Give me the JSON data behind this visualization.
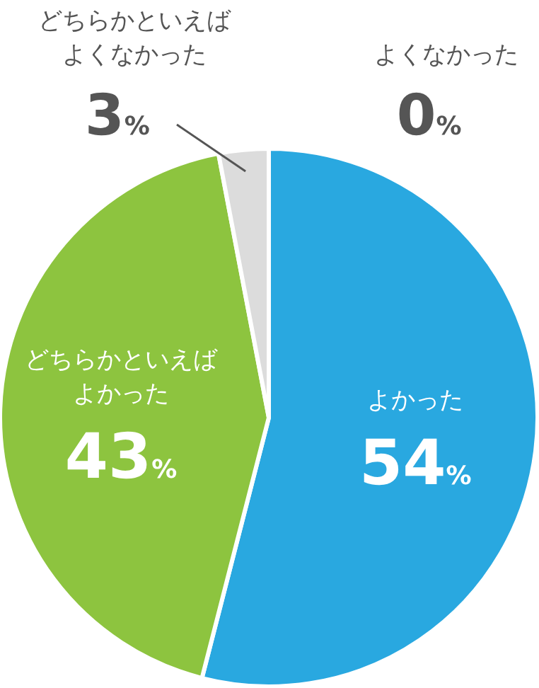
{
  "chart_data": {
    "type": "pie",
    "categories": [
      "よかった",
      "どちらかといえばよかった",
      "どちらかといえばよくなかった",
      "よくなかった"
    ],
    "values": [
      54,
      43,
      3,
      0
    ],
    "colors": [
      "#29a8e0",
      "#8dc43f",
      "#dcdcdc",
      "#cccccc"
    ],
    "value_labels": [
      "54%",
      "43%",
      "3%",
      "0%"
    ]
  }
}
